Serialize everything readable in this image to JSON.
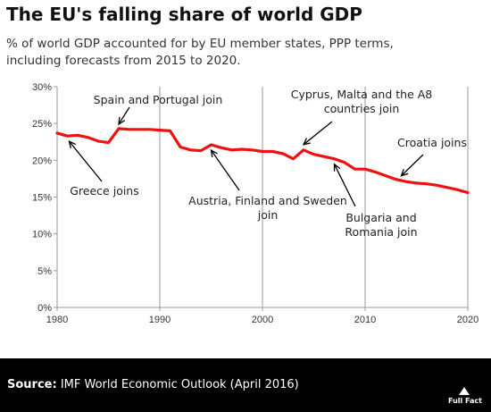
{
  "title": "The EU's falling share of world GDP",
  "subtitle_line1": "% of world GDP accounted for by EU member states, PPP terms,",
  "subtitle_line2": "including forecasts from 2015 to 2020.",
  "source_label": "Source:",
  "source_text": " IMF World Economic Outlook (April 2016)",
  "logo_text": "Full Fact",
  "colors": {
    "series": "#ee1111",
    "footer": "#000000",
    "grid": "#9a9a9a"
  },
  "chart_data": {
    "type": "line",
    "title": "The EU's falling share of world GDP",
    "xlabel": "",
    "ylabel": "",
    "xlim": [
      1980,
      2020
    ],
    "ylim": [
      0,
      30
    ],
    "x_ticks": [
      1980,
      1990,
      2000,
      2010,
      2020
    ],
    "y_ticks": [
      0,
      5,
      10,
      15,
      20,
      25,
      30
    ],
    "y_tick_labels": [
      "0%",
      "5%",
      "10%",
      "15%",
      "20%",
      "25%",
      "30%"
    ],
    "grid": "vertical",
    "series": [
      {
        "x": [
          1980,
          1981,
          1982,
          1983,
          1984,
          1985,
          1986,
          1987,
          1988,
          1989,
          1990,
          1991,
          1992,
          1993,
          1994,
          1995,
          1996,
          1997,
          1998,
          1999,
          2000,
          2001,
          2002,
          2003,
          2004,
          2005,
          2006,
          2007,
          2008,
          2009,
          2010,
          2011,
          2012,
          2013,
          2014,
          2015,
          2016,
          2017,
          2018,
          2019,
          2020
        ],
        "values": [
          23.7,
          23.3,
          23.4,
          23.1,
          22.6,
          22.4,
          24.3,
          24.2,
          24.2,
          24.2,
          24.1,
          24.0,
          21.8,
          21.4,
          21.3,
          22.1,
          21.7,
          21.4,
          21.5,
          21.4,
          21.2,
          21.2,
          20.9,
          20.2,
          21.4,
          20.8,
          20.5,
          20.2,
          19.7,
          18.8,
          18.8,
          18.4,
          17.9,
          17.4,
          17.1,
          16.9,
          16.8,
          16.6,
          16.3,
          16.0,
          15.6
        ]
      }
    ],
    "annotations": [
      {
        "lines": [
          "Spain and Portugal join"
        ],
        "x": 1986,
        "y": 24.3
      },
      {
        "lines": [
          "Greece joins"
        ],
        "x": 1981,
        "y": 23.3
      },
      {
        "lines": [
          "Austria, Finland and Sweden",
          "join"
        ],
        "x": 1995,
        "y": 22.1
      },
      {
        "lines": [
          "Cyprus, Malta and the A8",
          "countries join"
        ],
        "x": 2004,
        "y": 21.4
      },
      {
        "lines": [
          "Bulgaria and",
          "Romania join"
        ],
        "x": 2007,
        "y": 20.2
      },
      {
        "lines": [
          "Croatia joins"
        ],
        "x": 2013,
        "y": 17.4
      }
    ]
  }
}
